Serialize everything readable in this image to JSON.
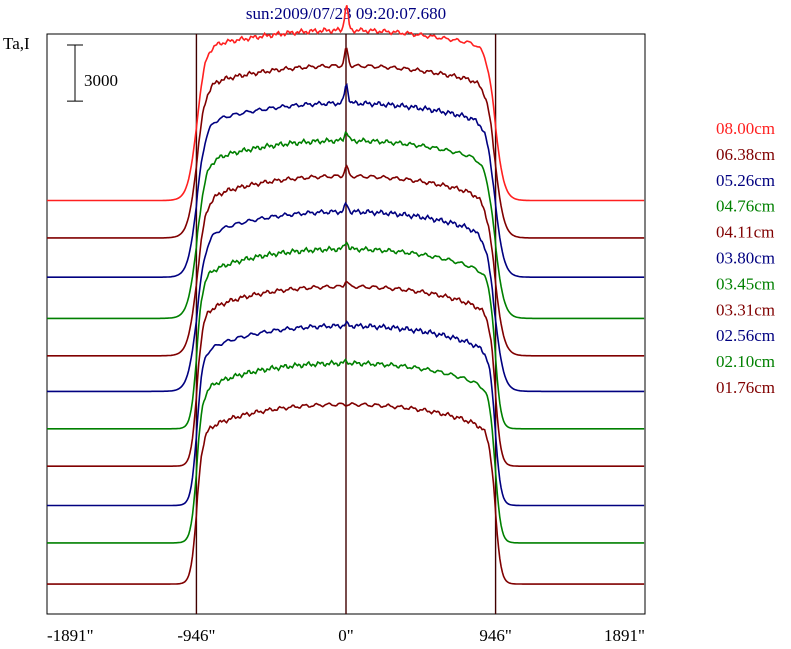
{
  "chart_data": {
    "type": "line",
    "title": "sun:2009/07/23 09:20:07.680",
    "ylabel": "Ta,I",
    "scale_bar_label": "3000",
    "scale_bar_value": 3000,
    "x_ticks": [
      -1891,
      -946,
      0,
      946,
      1891
    ],
    "x_tick_labels": [
      "-1891\"",
      "-946\"",
      "0\"",
      "946\"",
      "1891\""
    ],
    "xlim": [
      -1891,
      1891
    ],
    "ylim": [
      0,
      31000
    ],
    "limb_markers": [
      -946,
      0,
      946
    ],
    "grid": false,
    "legend_position": "right",
    "series": [
      {
        "name": "08.00cm",
        "color": "#ff2020",
        "baseline": 22100,
        "height": 9100,
        "center_spike": 1300,
        "limb_bright": 700
      },
      {
        "name": "06.38cm",
        "color": "#800000",
        "baseline": 20100,
        "height": 9200,
        "center_spike": 900,
        "limb_bright": 500
      },
      {
        "name": "05.26cm",
        "color": "#000080",
        "baseline": 18000,
        "height": 9300,
        "center_spike": 1000,
        "limb_bright": 400
      },
      {
        "name": "04.76cm",
        "color": "#008000",
        "baseline": 15800,
        "height": 9500,
        "center_spike": 500,
        "limb_bright": 300
      },
      {
        "name": "04.11cm",
        "color": "#800000",
        "baseline": 13800,
        "height": 9600,
        "center_spike": 500,
        "limb_bright": 200
      },
      {
        "name": "03.80cm",
        "color": "#000080",
        "baseline": 11900,
        "height": 9600,
        "center_spike": 400,
        "limb_bright": 100
      },
      {
        "name": "03.45cm",
        "color": "#008000",
        "baseline": 9900,
        "height": 9600,
        "center_spike": 400,
        "limb_bright": 0
      },
      {
        "name": "03.31cm",
        "color": "#800000",
        "baseline": 7900,
        "height": 9600,
        "center_spike": 300,
        "limb_bright": 0
      },
      {
        "name": "02.56cm",
        "color": "#000080",
        "baseline": 5800,
        "height": 9600,
        "center_spike": 100,
        "limb_bright": 0
      },
      {
        "name": "02.10cm",
        "color": "#008000",
        "baseline": 3800,
        "height": 9600,
        "center_spike": 100,
        "limb_bright": 0
      },
      {
        "name": "01.76cm",
        "color": "#800000",
        "baseline": 1600,
        "height": 9600,
        "center_spike": 0,
        "limb_bright": 0
      }
    ]
  }
}
